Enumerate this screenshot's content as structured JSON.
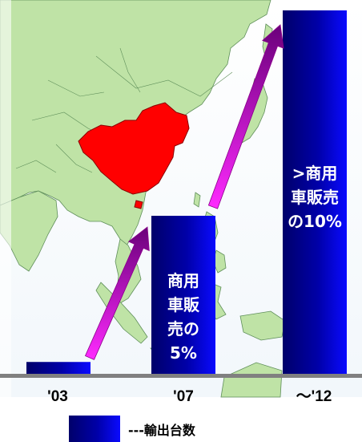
{
  "chart_data": {
    "type": "bar",
    "title": "",
    "xlabel": "",
    "ylabel": "",
    "categories": [
      "'03",
      "'07",
      "～'12"
    ],
    "series": [
      {
        "name": "---輸出台数",
        "values": [
          3,
          40,
          92
        ]
      }
    ],
    "ylim": [
      0,
      93
    ],
    "bar_labels": [
      [],
      [
        "商用",
        "車販",
        "売の",
        "5%"
      ],
      [
        ">商用",
        "車販売",
        "の10%"
      ]
    ],
    "legend": {
      "label": "---輸出台数",
      "position": "bottom"
    },
    "bar_color": "#0000cc",
    "arrow_color": "#cc22cc",
    "highlight_color": "#ff0000",
    "map_color": "#bfe3a6",
    "grid": false
  }
}
